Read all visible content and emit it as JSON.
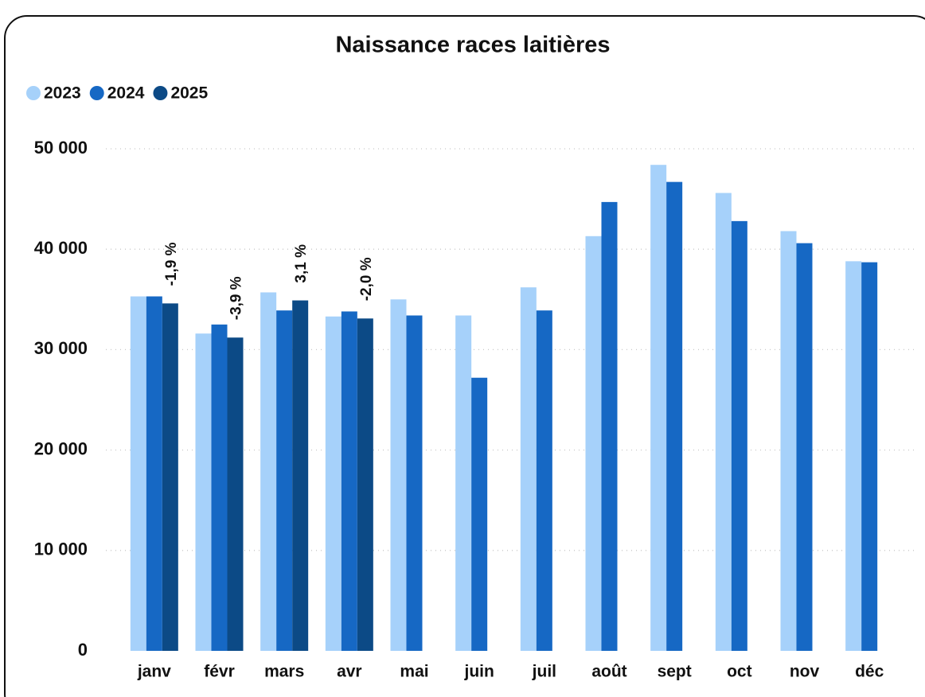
{
  "chart_data": {
    "type": "bar",
    "title": "Naissance races laitières",
    "categories": [
      "janv",
      "févr",
      "mars",
      "avr",
      "mai",
      "juin",
      "juil",
      "août",
      "sept",
      "oct",
      "nov",
      "déc"
    ],
    "series": [
      {
        "name": "2023",
        "color": "#a6d1fa",
        "values": [
          35300,
          31600,
          35700,
          33300,
          35000,
          33400,
          36200,
          41300,
          48400,
          45600,
          41800,
          38800
        ]
      },
      {
        "name": "2024",
        "color": "#1668c4",
        "values": [
          35300,
          32500,
          33900,
          33800,
          33400,
          27200,
          33900,
          44700,
          46700,
          42800,
          40600,
          38700
        ]
      },
      {
        "name": "2025",
        "color": "#0c4a86",
        "values": [
          34600,
          31200,
          34900,
          33100,
          null,
          null,
          null,
          null,
          null,
          null,
          null,
          null
        ],
        "change_labels": [
          "-1,9 %",
          "-3,9 %",
          "3,1 %",
          "-2,0 %",
          null,
          null,
          null,
          null,
          null,
          null,
          null,
          null
        ]
      }
    ],
    "ylim": [
      0,
      50000
    ],
    "yticks": [
      0,
      {
        "value": 10000,
        "label": "10 000"
      },
      {
        "value": 20000,
        "label": "20 000"
      },
      {
        "value": 30000,
        "label": "30 000"
      },
      {
        "value": 40000,
        "label": "40 000"
      },
      {
        "value": 50000,
        "label": "50 000"
      }
    ],
    "grid": true,
    "legend": "top-left"
  }
}
